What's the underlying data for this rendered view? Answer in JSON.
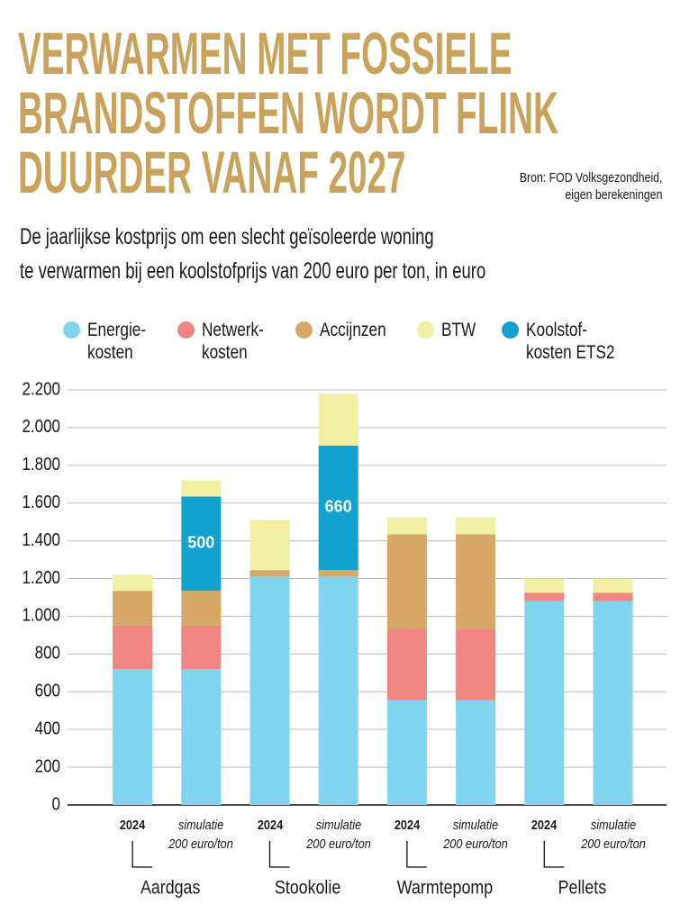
{
  "chart_data": {
    "type": "stacked-bar",
    "title": "VERWARMEN MET FOSSIELE\nBRANDSTOFFEN WORDT FLINK\nDUURDER VANAF 2027",
    "source": "Bron: FOD Volksgezondheid,\neigen berekeningen",
    "subtitle": "De jaarlijkse kostprijs om een slecht geïsoleerde woning\nte verwarmen bij een koolstofprijs van 200 euro per ton, in euro",
    "categories": [
      "2024",
      "simulatie\n200 euro/ton",
      "2024",
      "simulatie\n200 euro/ton",
      "2024",
      "simulatie\n200 euro/ton",
      "2024",
      "simulatie\n200 euro/ton"
    ],
    "groups": [
      "Aardgas",
      "Stookolie",
      "Warmtepomp",
      "Pellets"
    ],
    "series": [
      {
        "name": "Energie-\nkosten",
        "color": "#7fd5f0",
        "values": [
          720,
          720,
          1210,
          1210,
          555,
          555,
          1080,
          1080
        ]
      },
      {
        "name": "Netwerk-\nkosten",
        "color": "#ef8682",
        "values": [
          230,
          230,
          0,
          0,
          380,
          380,
          45,
          45
        ]
      },
      {
        "name": "Accijnzen",
        "color": "#d6a765",
        "values": [
          185,
          185,
          35,
          35,
          500,
          500,
          0,
          0
        ]
      },
      {
        "name": "Koolstof-\nkosten ETS2",
        "color": "#12a2cf",
        "values": [
          0,
          500,
          0,
          660,
          0,
          0,
          0,
          0
        ],
        "show_values": true
      },
      {
        "name": "BTW",
        "color": "#f1f0a2",
        "values": [
          85,
          85,
          265,
          275,
          90,
          90,
          75,
          75
        ]
      }
    ],
    "ylim": [
      0,
      2200
    ],
    "yticks": [
      0,
      200,
      400,
      600,
      800,
      {
        "value": 1000,
        "label": "1.000"
      },
      {
        "value": 1200,
        "label": "1.200"
      },
      {
        "value": 1400,
        "label": "1.400"
      },
      {
        "value": 1600,
        "label": "1.600"
      },
      {
        "value": 1800,
        "label": "1.800"
      },
      {
        "value": 2000,
        "label": "2.000"
      },
      {
        "value": 2200,
        "label": "2.200"
      }
    ],
    "grid": true
  }
}
